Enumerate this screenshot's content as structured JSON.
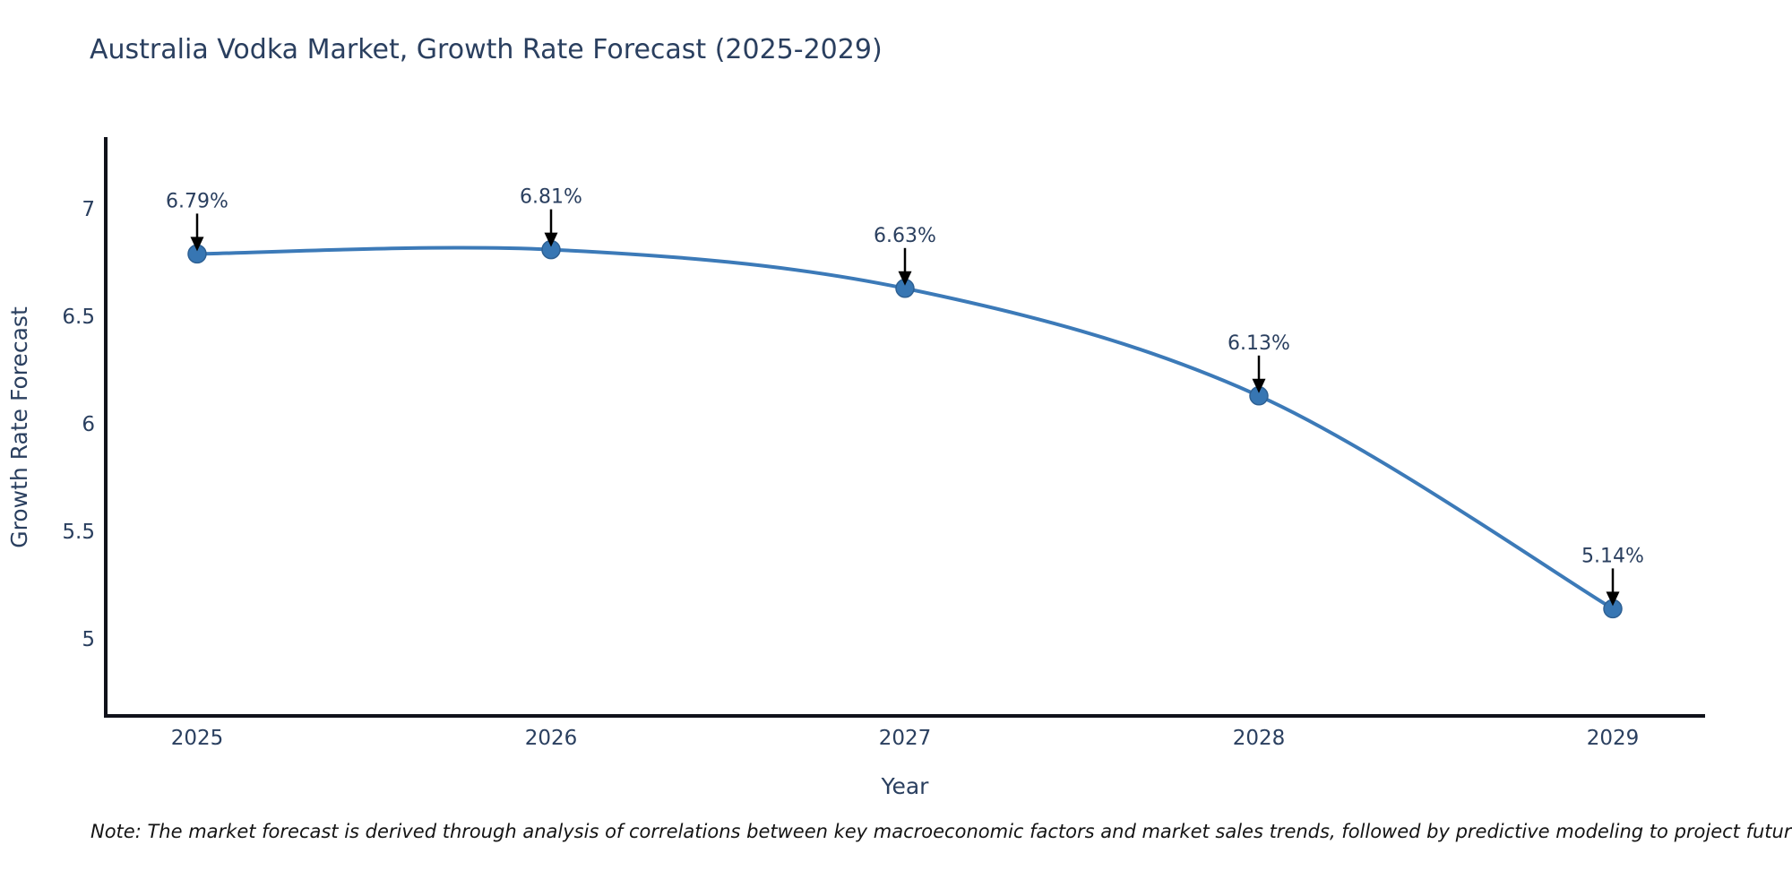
{
  "title": "Australia Vodka Market, Growth Rate Forecast (2025-2029)",
  "note": "Note: The market forecast is derived through analysis of correlations between key macroeconomic factors and market sales trends, followed by predictive modeling to project future sales",
  "chart_data": {
    "type": "line",
    "title": "Australia Vodka Market, Growth Rate Forecast (2025-2029)",
    "xlabel": "Year",
    "ylabel": "Growth Rate Forecast",
    "categories": [
      "2025",
      "2026",
      "2027",
      "2028",
      "2029"
    ],
    "values": [
      6.79,
      6.81,
      6.63,
      6.13,
      5.14
    ],
    "point_labels": [
      "6.79%",
      "6.81%",
      "6.63%",
      "6.13%",
      "5.14%"
    ],
    "ytick_labels": [
      "7",
      "6.5",
      "6",
      "5.5",
      "5"
    ],
    "ytick_values": [
      7,
      6.5,
      6,
      5.5,
      5
    ],
    "ylim": [
      4.65,
      7.33
    ],
    "grid": false,
    "legend": false,
    "line_smoothing": "spline",
    "colors": {
      "line": "#3c7ab8",
      "marker_fill": "#3776b3",
      "marker_edge": "#2e6093",
      "axis_line": "#10121a",
      "annotation_arrow": "#000000",
      "text": "#2a3f5f"
    }
  }
}
